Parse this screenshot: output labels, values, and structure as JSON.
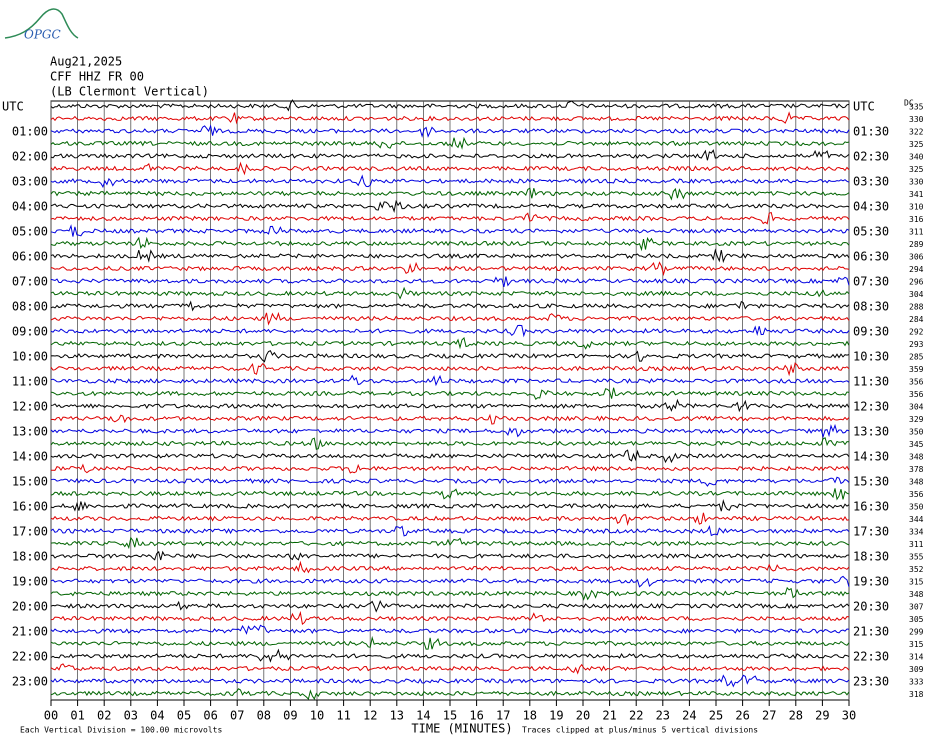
{
  "header": {
    "logo": "OPGC",
    "date": "Aug21,2025",
    "station": "CFF HHZ FR 00",
    "location": "(LB Clermont Vertical)"
  },
  "chart_data": {
    "type": "helicorder",
    "left_labels": [
      "UTC",
      "01:00",
      "02:00",
      "03:00",
      "04:00",
      "05:00",
      "06:00",
      "07:00",
      "08:00",
      "09:00",
      "10:00",
      "11:00",
      "12:00",
      "13:00",
      "14:00",
      "15:00",
      "16:00",
      "17:00",
      "18:00",
      "19:00",
      "20:00",
      "21:00",
      "22:00",
      "23:00"
    ],
    "right_labels": [
      "UTC",
      "01:30",
      "02:30",
      "03:30",
      "04:30",
      "05:30",
      "06:30",
      "07:30",
      "08:30",
      "09:30",
      "10:30",
      "11:30",
      "12:30",
      "13:30",
      "14:30",
      "15:30",
      "16:30",
      "17:30",
      "18:30",
      "19:30",
      "20:30",
      "21:30",
      "22:30",
      "23:30"
    ],
    "dc_title": "DC",
    "dc_values": [
      335,
      330,
      322,
      325,
      340,
      325,
      330,
      341,
      310,
      316,
      311,
      289,
      306,
      294,
      296,
      304,
      288,
      284,
      292,
      293,
      285,
      359,
      356,
      356,
      304,
      329,
      350,
      345,
      348,
      378,
      348,
      356,
      350,
      344,
      334,
      311,
      355,
      352,
      315,
      348,
      307,
      305,
      299,
      315,
      314,
      309,
      333,
      318
    ],
    "trace_colors": [
      "#000000",
      "#e00000",
      "#0000e0",
      "#006400"
    ],
    "x_label": "TIME (MINUTES)",
    "xlim": [
      0,
      30
    ],
    "xticks": [
      {
        "value": 0,
        "label": "00"
      },
      {
        "value": 1,
        "label": "01"
      },
      {
        "value": 2,
        "label": "02"
      },
      {
        "value": 3,
        "label": "03"
      },
      {
        "value": 4,
        "label": "04"
      },
      {
        "value": 5,
        "label": "05"
      },
      {
        "value": 6,
        "label": "06"
      },
      {
        "value": 7,
        "label": "07"
      },
      {
        "value": 8,
        "label": "08"
      },
      {
        "value": 9,
        "label": "09"
      },
      10,
      11,
      12,
      13,
      14,
      15,
      16,
      17,
      18,
      19,
      20,
      21,
      22,
      23,
      24,
      25,
      26,
      27,
      28,
      29,
      30
    ],
    "grid": true,
    "scale_note": "Each Vertical Division =  100.00 microvolts",
    "clip_note": "Traces clipped at plus/minus 5 vertical divisions"
  }
}
